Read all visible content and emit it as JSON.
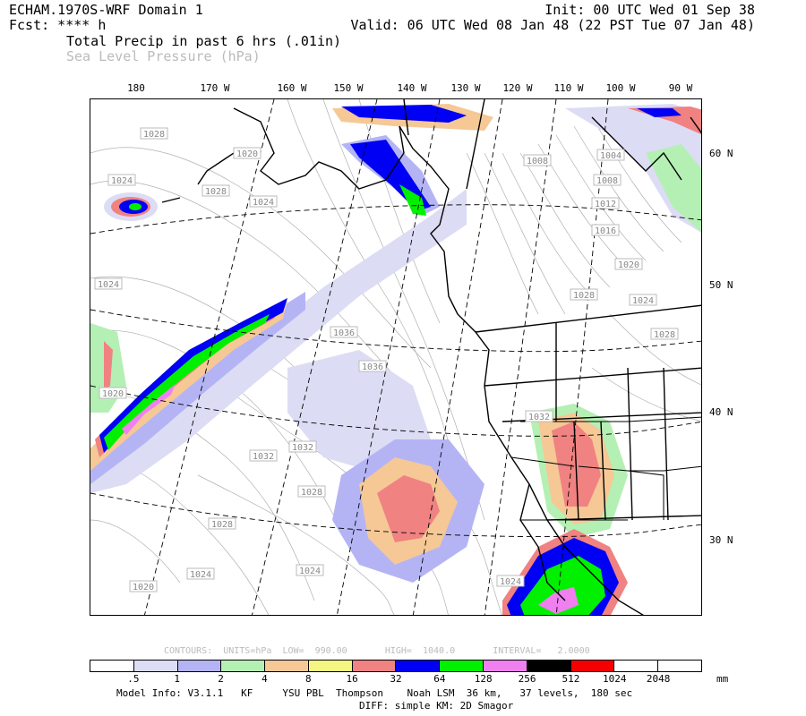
{
  "header": {
    "model": "ECHAM.1970S-WRF Domain 1",
    "fcst": "Fcst: **** h",
    "init": "Init: 00 UTC Wed 01 Sep 38",
    "valid": "Valid: 06 UTC Wed 08 Jan 48 (22 PST Tue 07 Jan 48)",
    "field1": "Total Precip in past 6 hrs (.01in)",
    "field2": "Sea Level Pressure (hPa)"
  },
  "longitude_labels": [
    "180",
    "170 W",
    "160 W",
    "150 W",
    "140 W",
    "130 W",
    "120 W",
    "110 W",
    "100 W",
    "90 W"
  ],
  "latitude_labels": [
    "60 N",
    "50 N",
    "40 N",
    "30 N"
  ],
  "pressure_labels": [
    "1028",
    "1020",
    "1024",
    "1028",
    "1024",
    "1024",
    "1020",
    "1036",
    "1036",
    "1032",
    "1032",
    "1028",
    "1028",
    "1024",
    "1024",
    "1020",
    "1008",
    "1004",
    "1008",
    "1012",
    "1016",
    "1020",
    "1028",
    "1024",
    "1028",
    "1032",
    "1024"
  ],
  "contour_info": "CONTOURS:  UNITS=hPa  LOW=  990.00       HIGH=  1040.0       INTERVAL=   2.0000",
  "legend": {
    "colors": [
      "#ffffff",
      "#dcdcf5",
      "#b4b4f5",
      "#b4f0b4",
      "#f5c896",
      "#f5f582",
      "#f08282",
      "#0000f5",
      "#00f000",
      "#f080f0",
      "#000000",
      "#f50000",
      "#ffffff",
      "#ffffff"
    ],
    "labels": [
      ".5",
      "1",
      "2",
      "4",
      "8",
      "16",
      "32",
      "64",
      "128",
      "256",
      "512",
      "1024",
      "2048"
    ],
    "unit": "mm"
  },
  "footer": {
    "line1": "Model Info: V3.1.1   KF     YSU PBL  Thompson    Noah LSM  36 km,   37 levels,  180 sec",
    "line2": "DIFF: simple KM: 2D Smagor"
  }
}
